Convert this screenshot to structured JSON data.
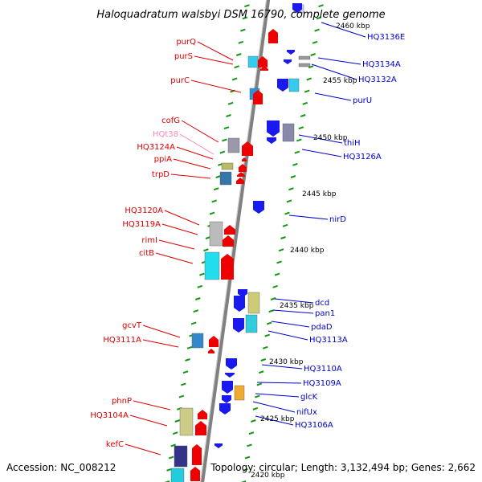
{
  "title": "Haloquadratum walsbyi DSM 16790, complete genome",
  "footer": {
    "accession": "Accession: NC_008212",
    "summary": "Topology: circular; Length: 3,132,494 bp; Genes: 2,662"
  },
  "colors": {
    "left_label": "#dd0000",
    "right_label": "#0000cc",
    "rna_label": "#ff88bb",
    "left_arrow": "#ee0000",
    "right_arrow": "#1a1aee",
    "backbone": "#808080",
    "tick": "#119911"
  },
  "kbp_marks": [
    "2460 kbp",
    "2455 kbp",
    "2450 kbp",
    "2445 kbp",
    "2440 kbp",
    "2435 kbp",
    "2430 kbp",
    "2425 kbp",
    "2420 kbp"
  ],
  "left_labels": [
    "purQ",
    "purS",
    "purC",
    "cofG",
    "HQt38",
    "HQ3124A",
    "ppiA",
    "trpD",
    "HQ3120A",
    "HQ3119A",
    "rimI",
    "citB",
    "gcvT",
    "HQ3111A",
    "phnP",
    "HQ3104A",
    "kefC"
  ],
  "right_labels": [
    "HQ3136E",
    "HQ3134A",
    "HQ3132A",
    "purU",
    "thiH",
    "HQ3126A",
    "nirD",
    "dcd",
    "pan1",
    "pdaD",
    "HQ3113A",
    "HQ3110A",
    "HQ3109A",
    "glcK",
    "nifUx",
    "HQ3106A"
  ]
}
